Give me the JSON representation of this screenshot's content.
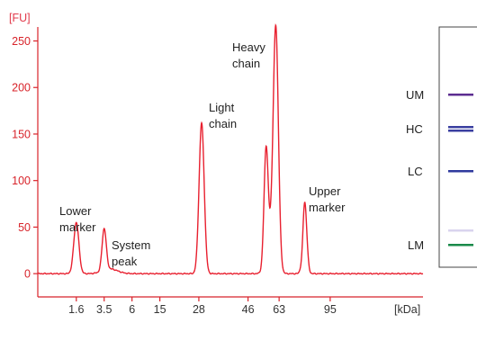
{
  "chart_data": {
    "type": "line",
    "y_unit": "[FU]",
    "x_unit": "[kDa]",
    "ylim": [
      -25,
      265
    ],
    "yticks": [
      0,
      50,
      100,
      150,
      200,
      250
    ],
    "xticks": [
      {
        "label": "1.6",
        "pos": 8.3
      },
      {
        "label": "3.5",
        "pos": 14.3
      },
      {
        "label": "6",
        "pos": 20.3
      },
      {
        "label": "15",
        "pos": 26.3
      },
      {
        "label": "28",
        "pos": 34.7
      },
      {
        "label": "46",
        "pos": 45.3
      },
      {
        "label": "63",
        "pos": 52.0
      },
      {
        "label": "95",
        "pos": 63.0
      }
    ],
    "xlim": [
      0,
      83
    ],
    "grid": false,
    "line_color": "#e8202f",
    "series": [
      {
        "baseline": 0,
        "peaks": [
          {
            "pos": 8.3,
            "height": 55,
            "width": 0.55
          },
          {
            "pos": 14.3,
            "height": 45,
            "width": 0.45
          },
          {
            "pos": 15.6,
            "height": 5,
            "width": 1.6
          },
          {
            "pos": 35.3,
            "height": 162,
            "width": 0.55
          },
          {
            "pos": 49.2,
            "height": 123,
            "width": 0.45
          },
          {
            "pos": 50.3,
            "height": 40,
            "width": 0.9
          },
          {
            "pos": 51.3,
            "height": 245,
            "width": 0.55
          },
          {
            "pos": 57.5,
            "height": 78,
            "width": 0.45
          }
        ],
        "dips": [
          {
            "pos": 49.7,
            "depth": 10,
            "width": 0.4
          },
          {
            "pos": 57.0,
            "depth": 10,
            "width": 0.25
          }
        ]
      }
    ],
    "annotations": [
      {
        "id": "lower-marker",
        "lines": [
          "Lower",
          "marker"
        ]
      },
      {
        "id": "system-peak",
        "lines": [
          "System",
          "peak"
        ]
      },
      {
        "id": "light-chain",
        "lines": [
          "Light",
          "chain"
        ]
      },
      {
        "id": "heavy-chain",
        "lines": [
          "Heavy",
          "chain"
        ]
      },
      {
        "id": "upper-marker",
        "lines": [
          "Upper",
          "marker"
        ]
      }
    ]
  },
  "gel": {
    "bands": [
      {
        "label": "UM",
        "color": "#5c2d91"
      },
      {
        "label": "HC",
        "color": "#3a3fa0"
      },
      {
        "label": "LC",
        "color": "#2f3a9e"
      },
      {
        "label": "",
        "color": "#d9d4ee"
      },
      {
        "label": "LM",
        "color": "#1a8a4a"
      }
    ]
  },
  "colors": {
    "axis": "#d8232a",
    "trace": "#e8202f",
    "unit_label": "#e23a4b"
  }
}
